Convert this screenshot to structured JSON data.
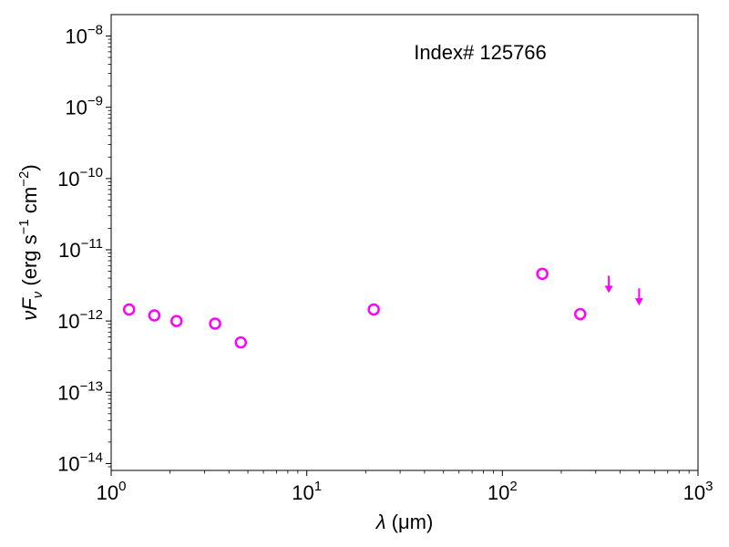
{
  "chart_data": {
    "type": "scatter",
    "x_scale": "log",
    "y_scale": "log",
    "xlim": [
      1,
      1000
    ],
    "ylim": [
      8e-15,
      2e-08
    ],
    "xlabel": {
      "prefix": "λ",
      "text": " (μm)"
    },
    "ylabel": {
      "main": "νF",
      "sub": "ν",
      "text": " (erg s",
      "sup1": "−1",
      "mid": " cm",
      "sup2": "−2",
      "end": ")"
    },
    "x_ticks": [
      {
        "value": 1,
        "base": "10",
        "exp": "0"
      },
      {
        "value": 10,
        "base": "10",
        "exp": "1"
      },
      {
        "value": 100,
        "base": "10",
        "exp": "2"
      },
      {
        "value": 1000,
        "base": "10",
        "exp": "3"
      }
    ],
    "y_ticks": [
      {
        "value": 1e-14,
        "base": "10",
        "exp": "−14"
      },
      {
        "value": 1e-13,
        "base": "10",
        "exp": "−13"
      },
      {
        "value": 1e-12,
        "base": "10",
        "exp": "−12"
      },
      {
        "value": 1e-11,
        "base": "10",
        "exp": "−11"
      },
      {
        "value": 1e-10,
        "base": "10",
        "exp": "−10"
      },
      {
        "value": 1e-09,
        "base": "10",
        "exp": "−9"
      },
      {
        "value": 1e-08,
        "base": "10",
        "exp": "−8"
      }
    ],
    "annotation": "Index# 125766",
    "color": "#ff00ff",
    "grid": false,
    "points": [
      {
        "x": 1.235,
        "y": 1.45e-12
      },
      {
        "x": 1.662,
        "y": 1.2e-12
      },
      {
        "x": 2.159,
        "y": 1e-12
      },
      {
        "x": 3.4,
        "y": 9.2e-13
      },
      {
        "x": 4.6,
        "y": 5e-13
      },
      {
        "x": 22.0,
        "y": 1.45e-12
      },
      {
        "x": 160,
        "y": 4.6e-12
      },
      {
        "x": 250,
        "y": 1.25e-12
      }
    ],
    "upper_limits": [
      {
        "x": 350,
        "y": 2.7e-12
      },
      {
        "x": 500,
        "y": 1.8e-12
      }
    ]
  }
}
